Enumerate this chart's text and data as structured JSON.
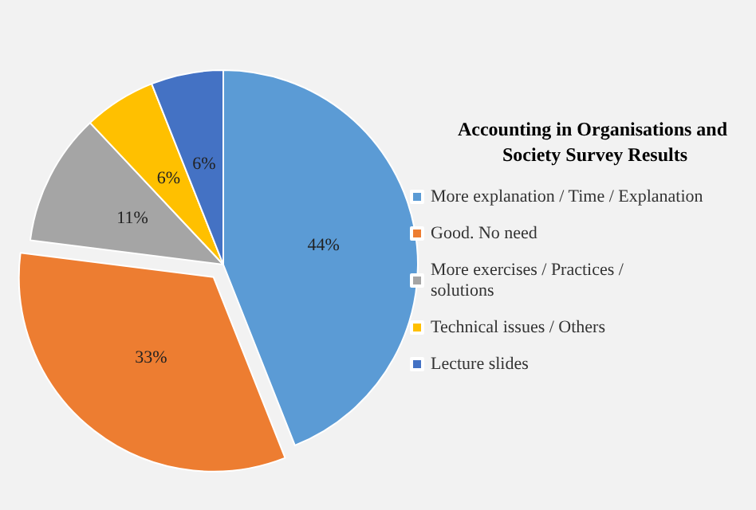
{
  "chart_data": {
    "type": "pie",
    "title": "Accounting in Organisations and Society Survey Results",
    "categories": [
      "More explanation / Time / Explanation",
      "Good. No need",
      "More exercises / Practices / solutions",
      "Technical issues / Others",
      "Lecture slides"
    ],
    "values": [
      44,
      33,
      11,
      6,
      6
    ],
    "colors": [
      "#5b9bd5",
      "#ed7d31",
      "#a5a5a5",
      "#ffc000",
      "#4472c4"
    ],
    "value_labels": [
      "44%",
      "33%",
      "11%",
      "6%",
      "6%"
    ],
    "legend": "right"
  }
}
